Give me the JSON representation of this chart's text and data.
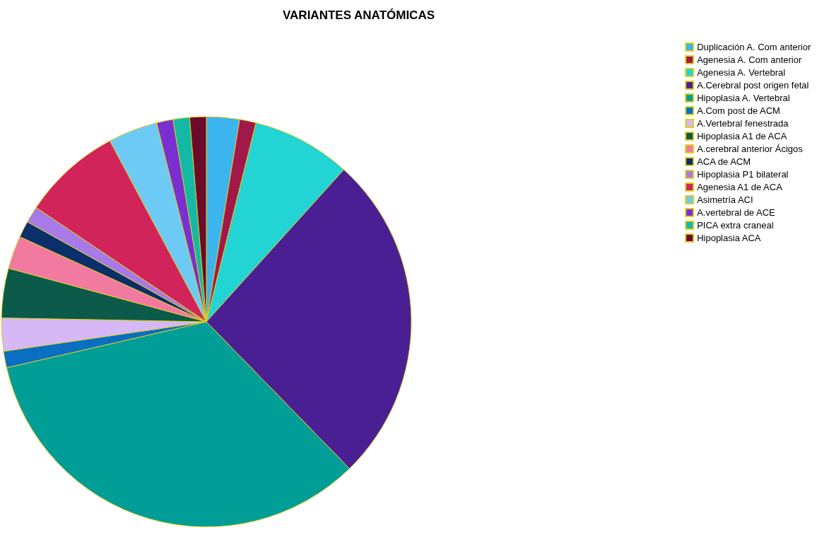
{
  "chart_data": {
    "type": "pie",
    "title": "VARIANTES ANATÓMICAS",
    "categories": [
      "Duplicación A. Com anterior",
      "Agenesia A. Com anterior",
      "Agenesia A. Vertebral",
      "A.Cerebral post origen fetal",
      "Hipoplasia A. Vertebral",
      "A.Com post de ACM",
      "A.Vertebral fenestrada",
      "Hipoplasia A1 de ACA",
      "A.cerebral anterior Ácigos",
      "ACA de ACM",
      "Hipoplasia P1 bilateral",
      "Agenesia A1 de ACA",
      "Asimetría ACI",
      "A.vertebral de ACE",
      "PICA extra craneal",
      "Hipoplasia ACA"
    ],
    "values": [
      2.6,
      1.3,
      7.8,
      26.0,
      33.7,
      1.3,
      2.6,
      3.9,
      2.6,
      1.3,
      1.3,
      7.8,
      3.9,
      1.3,
      1.3,
      1.3
    ],
    "colors": [
      "#3cb4ee",
      "#a0194a",
      "#22d4d4",
      "#4b1f94",
      "#009e96",
      "#0a6fc2",
      "#d5b8f5",
      "#0b5a4a",
      "#f27aa0",
      "#0a2f6a",
      "#a77ae8",
      "#d0245a",
      "#6ccaf5",
      "#7a2fd0",
      "#14b8a6",
      "#6b0a2a"
    ],
    "legend": "top right"
  }
}
